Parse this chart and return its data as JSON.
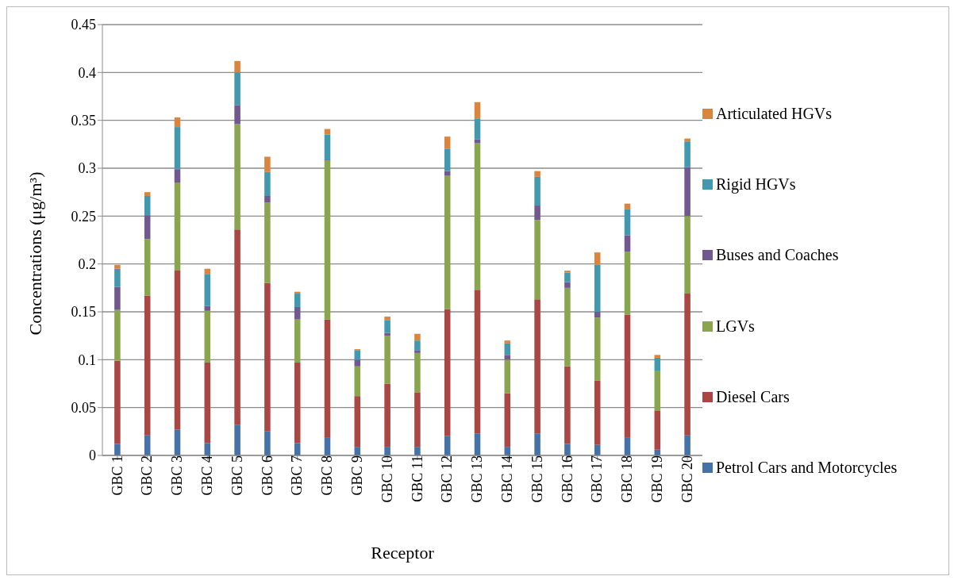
{
  "chart_data": {
    "type": "bar",
    "stacked": true,
    "xlabel": "Receptor",
    "ylabel": "Concentrations (μg/m³)",
    "categories": [
      "GBC 1",
      "GBC 2",
      "GBC 3",
      "GBC 4",
      "GBC 5",
      "GBC 6",
      "GBC 7",
      "GBC 8",
      "GBC 9",
      "GBC 10",
      "GBC 11",
      "GBC 12",
      "GBC 13",
      "GBC 14",
      "GBC 15",
      "GBC 16",
      "GBC 17",
      "GBC 18",
      "GBC 19",
      "GBC 20"
    ],
    "series": [
      {
        "name": "Petrol Cars and Motorcycles",
        "color": "#4572a7",
        "values": [
          0.012,
          0.021,
          0.027,
          0.013,
          0.032,
          0.025,
          0.013,
          0.019,
          0.009,
          0.009,
          0.009,
          0.02,
          0.023,
          0.009,
          0.023,
          0.012,
          0.011,
          0.019,
          0.006,
          0.021
        ]
      },
      {
        "name": "Diesel Cars",
        "color": "#aa4643",
        "values": [
          0.087,
          0.146,
          0.166,
          0.084,
          0.204,
          0.155,
          0.084,
          0.123,
          0.053,
          0.066,
          0.057,
          0.133,
          0.15,
          0.056,
          0.14,
          0.081,
          0.067,
          0.128,
          0.041,
          0.148
        ]
      },
      {
        "name": "LGVs",
        "color": "#89a54e",
        "values": [
          0.053,
          0.059,
          0.092,
          0.054,
          0.11,
          0.084,
          0.045,
          0.166,
          0.031,
          0.05,
          0.041,
          0.139,
          0.153,
          0.035,
          0.083,
          0.082,
          0.066,
          0.066,
          0.041,
          0.081
        ]
      },
      {
        "name": "Buses and Coaches",
        "color": "#71588f",
        "values": [
          0.024,
          0.025,
          0.014,
          0.005,
          0.02,
          0.007,
          0.013,
          0.001,
          0.007,
          0.003,
          0.003,
          0.005,
          0.004,
          0.005,
          0.015,
          0.006,
          0.006,
          0.017,
          0,
          0.051
        ]
      },
      {
        "name": "Rigid HGVs",
        "color": "#4198af",
        "values": [
          0.019,
          0.02,
          0.044,
          0.033,
          0.034,
          0.025,
          0.014,
          0.026,
          0.01,
          0.013,
          0.01,
          0.023,
          0.022,
          0.012,
          0.03,
          0.01,
          0.049,
          0.027,
          0.014,
          0.027
        ]
      },
      {
        "name": "Articulated HGVs",
        "color": "#db843d",
        "values": [
          0.004,
          0.004,
          0.01,
          0.006,
          0.012,
          0.016,
          0.002,
          0.006,
          0.001,
          0.004,
          0.007,
          0.013,
          0.017,
          0.003,
          0.006,
          0.002,
          0.013,
          0.006,
          0.003,
          0.003
        ]
      }
    ],
    "ylim": [
      0,
      0.45
    ],
    "yticks": [
      0,
      0.05,
      0.1,
      0.15,
      0.2,
      0.25,
      0.3,
      0.35,
      0.4,
      0.45
    ],
    "grid": "y",
    "legend": "right"
  }
}
